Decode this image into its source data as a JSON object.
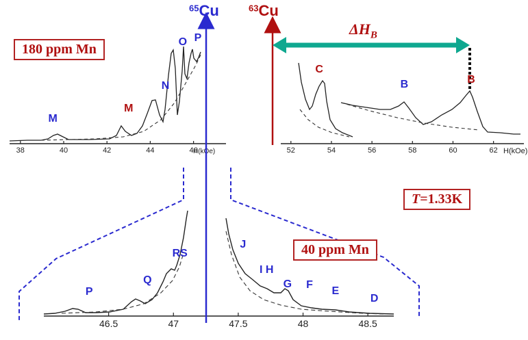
{
  "header": {
    "cu65_mass": "65",
    "cu65_sym": "Cu",
    "cu63_mass": "63",
    "cu63_sym": "Cu",
    "delta_label": "ΔH",
    "delta_sub": "B"
  },
  "boxes": {
    "top_left": "180 ppm Mn",
    "temperature": "T=1.33K",
    "bottom": "40 ppm Mn"
  },
  "colors": {
    "blue": "#2a2acf",
    "red": "#b01010",
    "teal": "#0fa890",
    "ink": "#222222"
  },
  "chart_data": [
    {
      "type": "line",
      "id": "top-left",
      "xlabel": "H(kOe)",
      "xticks": [
        "38",
        "40",
        "42",
        "44",
        "46"
      ],
      "xlim": [
        37.5,
        47.5
      ],
      "peaks": [
        {
          "label": "M",
          "x": 39.5,
          "color": "blue"
        },
        {
          "label": "M",
          "x": 43.0,
          "color": "red"
        },
        {
          "label": "N",
          "x": 44.7,
          "color": "blue"
        },
        {
          "label": "O",
          "x": 45.5,
          "color": "blue"
        },
        {
          "label": "P",
          "x": 46.2,
          "color": "blue"
        }
      ]
    },
    {
      "type": "line",
      "id": "top-right",
      "xlabel": "H(kOe)",
      "xticks": [
        "52",
        "54",
        "56",
        "58",
        "60",
        "62"
      ],
      "xlim": [
        51.5,
        63.5
      ],
      "peaks": [
        {
          "label": "C",
          "x": 53.4,
          "color": "red"
        },
        {
          "label": "B",
          "x": 57.6,
          "color": "blue"
        },
        {
          "label": "B",
          "x": 60.9,
          "color": "red"
        }
      ]
    },
    {
      "type": "line",
      "id": "bottom",
      "xticks": [
        "46.5",
        "47",
        "47.5",
        "48",
        "48.5"
      ],
      "xlim": [
        46.0,
        48.7
      ],
      "peaks": [
        {
          "label": "P",
          "x": 46.35,
          "color": "blue"
        },
        {
          "label": "Q",
          "x": 46.8,
          "color": "blue"
        },
        {
          "label": "RS",
          "x": 47.05,
          "color": "blue"
        },
        {
          "label": "J",
          "x": 47.6,
          "color": "blue"
        },
        {
          "label": "I H",
          "x": 47.75,
          "color": "blue"
        },
        {
          "label": "G",
          "x": 47.88,
          "color": "blue"
        },
        {
          "label": "F",
          "x": 48.05,
          "color": "blue"
        },
        {
          "label": "E",
          "x": 48.25,
          "color": "blue"
        },
        {
          "label": "D",
          "x": 48.55,
          "color": "blue"
        }
      ]
    }
  ]
}
